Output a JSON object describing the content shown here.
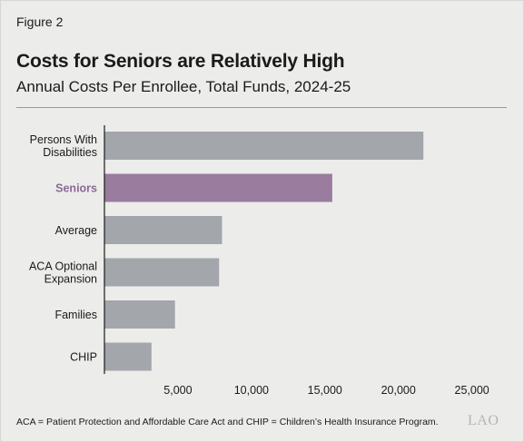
{
  "figure_label": "Figure 2",
  "footnote": "ACA = Patient Protection and Affordable Care Act and CHIP = Children’s Health Insurance Program.",
  "logo_text": "LAO",
  "colors": {
    "bar": "#a3a6ab",
    "highlight": "#9a7c9e",
    "highlight_label": "#8a6a96",
    "axis": "#1a1a1a"
  },
  "chart_data": {
    "type": "bar",
    "orientation": "horizontal",
    "title": "Costs for Seniors are Relatively High",
    "subtitle": "Annual Costs Per Enrollee, Total Funds, 2024-25",
    "categories": [
      [
        "Persons With",
        "Disabilities"
      ],
      [
        "Seniors"
      ],
      [
        "Average"
      ],
      [
        "ACA Optional",
        "Expansion"
      ],
      [
        "Families"
      ],
      [
        "CHIP"
      ]
    ],
    "values": [
      21700,
      15500,
      8000,
      7800,
      4800,
      3200
    ],
    "highlight_index": 1,
    "xlim": [
      0,
      27000
    ],
    "xticks": [
      5000,
      10000,
      15000,
      20000,
      25000
    ],
    "xtick_labels": [
      "5,000",
      "10,000",
      "15,000",
      "20,000",
      "25,000"
    ],
    "grid": false,
    "legend": "none"
  }
}
